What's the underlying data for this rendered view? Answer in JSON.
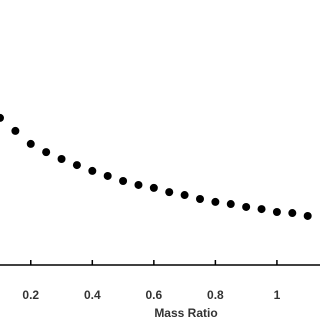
{
  "chart_data": {
    "type": "scatter",
    "x_label": "Mass Ratio",
    "x": [
      0.1,
      0.15,
      0.2,
      0.25,
      0.3,
      0.35,
      0.4,
      0.45,
      0.5,
      0.55,
      0.6,
      0.65,
      0.7,
      0.75,
      0.8,
      0.85,
      0.9,
      0.95,
      1.0,
      1.05,
      1.1
    ],
    "values": [
      55.5,
      50.6,
      45.7,
      42.6,
      40,
      37.7,
      35.5,
      33.6,
      31.7,
      30.2,
      29.1,
      27.5,
      26.4,
      24.9,
      23.8,
      23,
      21.9,
      21.1,
      20,
      19.6,
      18.5
    ],
    "color": "#000000",
    "xlim": [
      0.1,
      1.14
    ],
    "xticks": [
      0.2,
      0.4,
      0.6,
      0.8,
      1
    ],
    "ylim": [
      0,
      100
    ]
  }
}
